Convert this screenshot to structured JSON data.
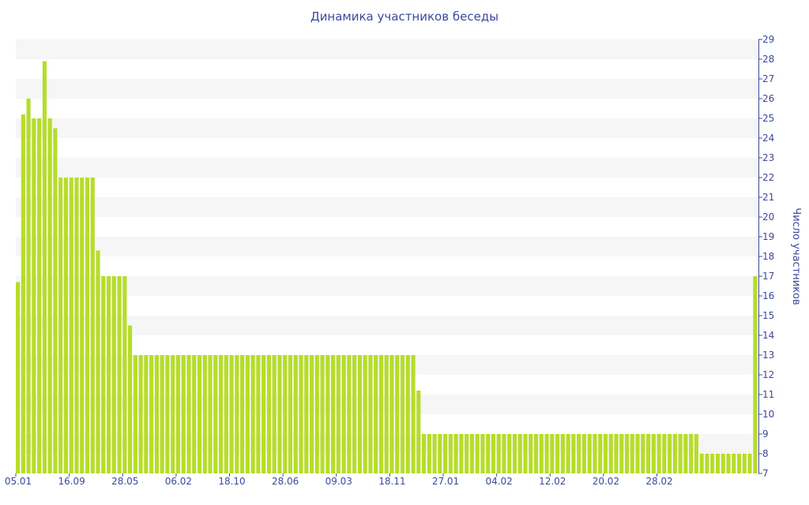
{
  "chart_data": {
    "type": "bar",
    "title": "Динамика участников беседы",
    "ylabel": "Число участников",
    "xlabel": "",
    "ylim": [
      7,
      29
    ],
    "y_ticks": [
      7,
      8,
      9,
      10,
      11,
      12,
      13,
      14,
      15,
      16,
      17,
      18,
      19,
      20,
      21,
      22,
      23,
      24,
      25,
      26,
      27,
      28,
      29
    ],
    "y_axis_position": "right",
    "grid": "alternating horizontal bands",
    "bar_color": "#b6dd2a",
    "band_color": "#f6f6f6",
    "text_color": "#3a4a9a",
    "x_tick_labels": [
      "05.01",
      "16.09",
      "28.05",
      "06.02",
      "18.10",
      "28.06",
      "09.03",
      "18.11",
      "27.01",
      "04.02",
      "12.02",
      "20.02",
      "28.02"
    ],
    "x_tick_bar_index": [
      0,
      10,
      20,
      30,
      40,
      50,
      60,
      70,
      80,
      90,
      100,
      110,
      120
    ],
    "values": [
      16.7,
      25.2,
      26,
      25,
      25,
      27.9,
      25,
      24.5,
      22,
      22,
      22,
      22,
      22,
      22,
      22,
      18.3,
      17,
      17,
      17,
      17,
      17,
      14.5,
      13,
      13,
      13,
      13,
      13,
      13,
      13,
      13,
      13,
      13,
      13,
      13,
      13,
      13,
      13,
      13,
      13,
      13,
      13,
      13,
      13,
      13,
      13,
      13,
      13,
      13,
      13,
      13,
      13,
      13,
      13,
      13,
      13,
      13,
      13,
      13,
      13,
      13,
      13,
      13,
      13,
      13,
      13,
      13,
      13,
      13,
      13,
      13,
      13,
      13,
      13,
      13,
      13,
      11.2,
      9,
      9,
      9,
      9,
      9,
      9,
      9,
      9,
      9,
      9,
      9,
      9,
      9,
      9,
      9,
      9,
      9,
      9,
      9,
      9,
      9,
      9,
      9,
      9,
      9,
      9,
      9,
      9,
      9,
      9,
      9,
      9,
      9,
      9,
      9,
      9,
      9,
      9,
      9,
      9,
      9,
      9,
      9,
      9,
      9,
      9,
      9,
      9,
      9,
      9,
      9,
      9,
      8,
      8,
      8,
      8,
      8,
      8,
      8,
      8,
      8,
      8,
      17
    ]
  }
}
